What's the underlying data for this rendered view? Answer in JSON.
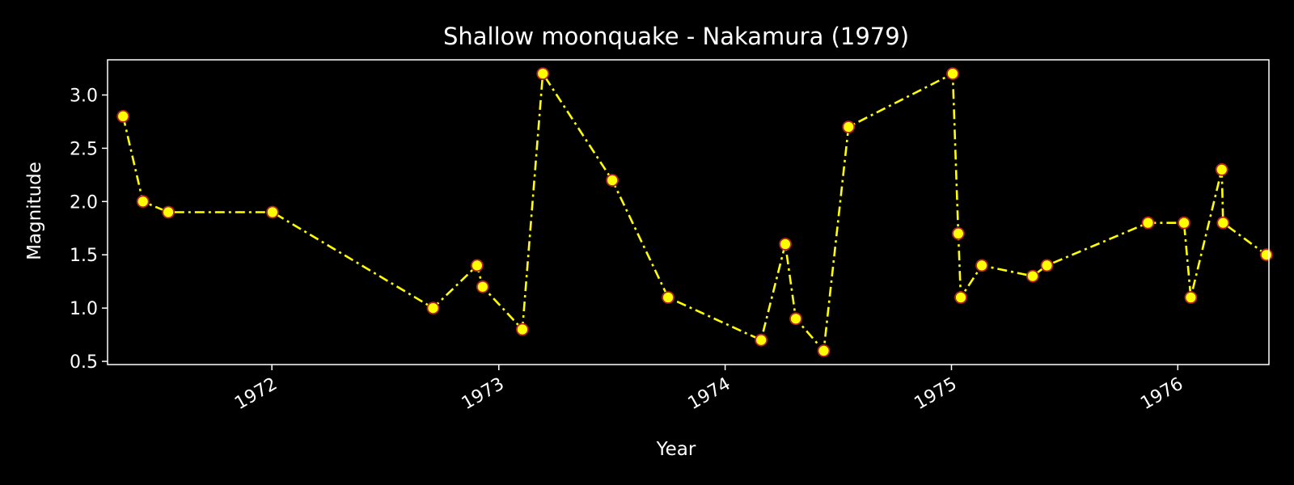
{
  "chart_data": {
    "type": "line",
    "title": "Shallow moonquake - Nakamura (1979)",
    "xlabel": "Year",
    "ylabel": "Magnitude",
    "x_axis_type": "date",
    "xlim": [
      "1971-04-11",
      "1976-05-27"
    ],
    "ylim": [
      0.47,
      3.33
    ],
    "x_ticks": [
      "1972-01-01",
      "1973-01-01",
      "1974-01-01",
      "1975-01-01",
      "1976-01-01"
    ],
    "x_tick_labels": [
      "1972",
      "1973",
      "1974",
      "1975",
      "1976"
    ],
    "y_ticks": [
      0.5,
      1.0,
      1.5,
      2.0,
      2.5,
      3.0
    ],
    "y_tick_labels": [
      "0.5",
      "1.0",
      "1.5",
      "2.0",
      "2.5",
      "3.0"
    ],
    "grid": false,
    "legend": false,
    "line_style": "dash-dot",
    "colors": {
      "background": "#000000",
      "line": "#ffff00",
      "marker_fill": "#ffff00",
      "marker_edge": "#b22222",
      "axes": "#ffffff",
      "text": "#ffffff"
    },
    "series": [
      {
        "x": [
          "1971-05-06",
          "1971-06-07",
          "1971-07-18",
          "1972-01-02",
          "1972-09-17",
          "1972-11-27",
          "1972-12-06",
          "1973-02-08",
          "1973-03-13",
          "1973-07-03",
          "1973-10-01",
          "1974-02-28",
          "1974-04-08",
          "1974-04-25",
          "1974-06-09",
          "1974-07-19",
          "1975-01-03",
          "1975-01-12",
          "1975-01-16",
          "1975-02-19",
          "1975-05-12",
          "1975-06-04",
          "1975-11-14",
          "1976-01-11",
          "1976-01-22",
          "1976-03-12",
          "1976-03-14",
          "1976-05-23"
        ],
        "y": [
          2.8,
          2.0,
          1.9,
          1.9,
          1.0,
          1.4,
          1.2,
          0.8,
          3.2,
          2.2,
          1.1,
          0.7,
          1.6,
          0.9,
          0.6,
          2.7,
          3.2,
          1.7,
          1.1,
          1.4,
          1.3,
          1.4,
          1.8,
          1.8,
          1.1,
          2.3,
          1.8,
          1.5
        ]
      }
    ]
  }
}
